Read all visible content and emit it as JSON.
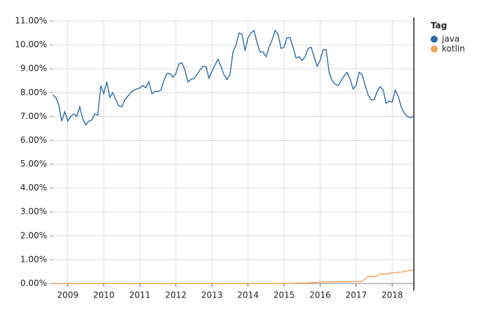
{
  "chart_data": {
    "type": "line",
    "legend_title": "Tag",
    "legend": "right",
    "grid": true,
    "xlim": [
      2008.58,
      2018.6
    ],
    "xticks": [
      2009,
      2010,
      2011,
      2012,
      2013,
      2014,
      2015,
      2016,
      2017,
      2018
    ],
    "ylim": [
      0,
      11
    ],
    "yticks": [
      {
        "value": 0,
        "label": "0.00%"
      },
      {
        "value": 1,
        "label": "1.00%"
      },
      {
        "value": 2,
        "label": "2.00%"
      },
      {
        "value": 3,
        "label": "3.00%"
      },
      {
        "value": 4,
        "label": "4.00%"
      },
      {
        "value": 5,
        "label": "5.00%"
      },
      {
        "value": 6,
        "label": "6.00%"
      },
      {
        "value": 7,
        "label": "7.00%"
      },
      {
        "value": 8,
        "label": "8.00%"
      },
      {
        "value": 9,
        "label": "9.00%"
      },
      {
        "value": 10,
        "label": "10.00%"
      },
      {
        "value": 11,
        "label": "11.00%"
      }
    ],
    "x": [
      2008.583,
      2008.667,
      2008.75,
      2008.833,
      2008.917,
      2009,
      2009.083,
      2009.167,
      2009.25,
      2009.333,
      2009.417,
      2009.5,
      2009.583,
      2009.667,
      2009.75,
      2009.833,
      2009.917,
      2010,
      2010.083,
      2010.167,
      2010.25,
      2010.333,
      2010.417,
      2010.5,
      2010.583,
      2010.667,
      2010.75,
      2010.833,
      2010.917,
      2011,
      2011.083,
      2011.167,
      2011.25,
      2011.333,
      2011.417,
      2011.5,
      2011.583,
      2011.667,
      2011.75,
      2011.833,
      2011.917,
      2012,
      2012.083,
      2012.167,
      2012.25,
      2012.333,
      2012.417,
      2012.5,
      2012.583,
      2012.667,
      2012.75,
      2012.833,
      2012.917,
      2013,
      2013.083,
      2013.167,
      2013.25,
      2013.333,
      2013.417,
      2013.5,
      2013.583,
      2013.667,
      2013.75,
      2013.833,
      2013.917,
      2014,
      2014.083,
      2014.167,
      2014.25,
      2014.333,
      2014.417,
      2014.5,
      2014.583,
      2014.667,
      2014.75,
      2014.833,
      2014.917,
      2015,
      2015.083,
      2015.167,
      2015.25,
      2015.333,
      2015.417,
      2015.5,
      2015.583,
      2015.667,
      2015.75,
      2015.833,
      2015.917,
      2016,
      2016.083,
      2016.167,
      2016.25,
      2016.333,
      2016.417,
      2016.5,
      2016.583,
      2016.667,
      2016.75,
      2016.833,
      2016.917,
      2017,
      2017.083,
      2017.167,
      2017.25,
      2017.333,
      2017.417,
      2017.5,
      2017.583,
      2017.667,
      2017.75,
      2017.833,
      2017.917,
      2018,
      2018.083,
      2018.167,
      2018.25,
      2018.333,
      2018.417,
      2018.5,
      2018.583
    ],
    "series": [
      {
        "name": "java",
        "color": "#2f6ba5",
        "values": [
          7.9,
          7.8,
          7.5,
          6.8,
          7.2,
          6.8,
          7.0,
          7.1,
          7.0,
          7.4,
          6.9,
          6.65,
          6.8,
          6.85,
          7.1,
          7.05,
          8.3,
          7.95,
          8.45,
          7.8,
          8.0,
          7.7,
          7.45,
          7.4,
          7.7,
          7.85,
          8.0,
          8.1,
          8.15,
          8.2,
          8.3,
          8.2,
          8.45,
          7.95,
          8.05,
          8.05,
          8.1,
          8.5,
          8.8,
          8.8,
          8.65,
          8.8,
          9.2,
          9.25,
          8.95,
          8.45,
          8.55,
          8.6,
          8.75,
          8.95,
          9.1,
          9.1,
          8.6,
          8.9,
          9.15,
          9.4,
          9.1,
          8.75,
          8.55,
          8.75,
          9.7,
          10.0,
          10.5,
          10.45,
          9.75,
          10.3,
          10.5,
          10.6,
          10.1,
          9.7,
          9.7,
          9.5,
          9.9,
          10.2,
          10.6,
          10.45,
          9.85,
          9.9,
          10.3,
          10.3,
          9.9,
          9.45,
          9.5,
          9.35,
          9.5,
          9.85,
          9.9,
          9.5,
          9.1,
          9.35,
          9.8,
          9.8,
          8.85,
          8.5,
          8.35,
          8.3,
          8.5,
          8.7,
          8.85,
          8.55,
          8.15,
          8.3,
          8.85,
          8.75,
          8.3,
          7.9,
          7.7,
          7.7,
          8.05,
          8.25,
          8.1,
          7.55,
          7.65,
          7.6,
          8.1,
          7.85,
          7.4,
          7.15,
          7.0,
          6.95,
          7.0
        ]
      },
      {
        "name": "kotlin",
        "color": "#f5a35c",
        "values": [
          0,
          0,
          0,
          0,
          0,
          0,
          0,
          0,
          0,
          0,
          0,
          0,
          0,
          0,
          0,
          0,
          0,
          0,
          0,
          0,
          0,
          0,
          0,
          0,
          0,
          0,
          0,
          0,
          0,
          0,
          0,
          0,
          0,
          0,
          0,
          0,
          0,
          0,
          0,
          0,
          0,
          0,
          0,
          0,
          0,
          0,
          0,
          0,
          0,
          0,
          0,
          0,
          0,
          0,
          0,
          0,
          0,
          0,
          0,
          0,
          0,
          0,
          0,
          0,
          0,
          0,
          0,
          0,
          0,
          0,
          0,
          0,
          0,
          0,
          0,
          0,
          0,
          0.01,
          0.01,
          0.01,
          0.01,
          0.02,
          0.02,
          0.02,
          0.02,
          0.03,
          0.03,
          0.04,
          0.05,
          0.06,
          0.07,
          0.07,
          0.07,
          0.07,
          0.07,
          0.07,
          0.07,
          0.07,
          0.07,
          0.08,
          0.08,
          0.08,
          0.08,
          0.09,
          0.2,
          0.3,
          0.3,
          0.3,
          0.32,
          0.4,
          0.4,
          0.4,
          0.42,
          0.45,
          0.45,
          0.47,
          0.48,
          0.5,
          0.52,
          0.55,
          0.55
        ]
      }
    ]
  }
}
